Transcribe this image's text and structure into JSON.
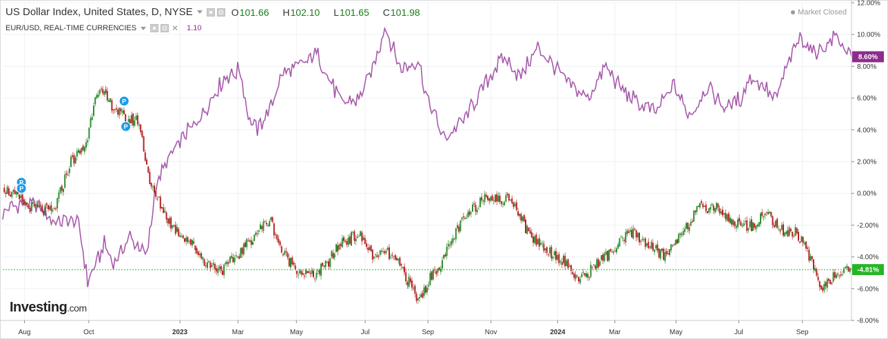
{
  "header": {
    "main_series": "US Dollar Index, United States, D, NYSE",
    "ohlc": {
      "o_label": "O",
      "o": "101.66",
      "h_label": "H",
      "h": "102.10",
      "l_label": "L",
      "l": "101.65",
      "c_label": "C",
      "c": "101.98"
    },
    "compare_series": "EUR/USD, REAL-TIME CURRENCIES",
    "compare_value": "1.10",
    "status": "Market Closed"
  },
  "brand": {
    "name": "Investing",
    "suffix": ".com"
  },
  "colors": {
    "up": "#2e8b2e",
    "down": "#b22222",
    "eurusd": "#a65aaa",
    "current_tag": "#26b526",
    "eur_tag": "#8e2c8e",
    "grid": "#eef0f3"
  },
  "chart_data": {
    "type": "line",
    "title": "US Dollar Index, United States, D, NYSE",
    "xlabel": "",
    "ylabel": "",
    "ylim": [
      -8,
      12
    ],
    "y_ticks": [
      "12.00%",
      "10.00%",
      "8.00%",
      "6.00%",
      "4.00%",
      "2.00%",
      "0.00%",
      "-2.00%",
      "-4.00%",
      "-6.00%",
      "-8.00%"
    ],
    "y_tick_values": [
      12,
      10,
      8,
      6,
      4,
      2,
      0,
      -2,
      -4,
      -6,
      -8
    ],
    "x_ticks": [
      "Aug",
      "Oct",
      "2023",
      "Mar",
      "May",
      "Jul",
      "Sep",
      "Nov",
      "2024",
      "Mar",
      "May",
      "Jul",
      "Sep"
    ],
    "x_tick_values": [
      0.0256,
      0.1014,
      0.2087,
      0.2771,
      0.346,
      0.4271,
      0.501,
      0.5752,
      0.6538,
      0.7212,
      0.7933,
      0.8672,
      0.9421
    ],
    "current_dxy_label": "-4.81%",
    "current_eurusd_label": "8.60%",
    "series": [
      {
        "name": "US Dollar Index",
        "style": "candles",
        "x": [
          0,
          0.03,
          0.06,
          0.08,
          0.095,
          0.1,
          0.11,
          0.13,
          0.145,
          0.16,
          0.175,
          0.2,
          0.22,
          0.24,
          0.26,
          0.28,
          0.3,
          0.315,
          0.33,
          0.35,
          0.365,
          0.38,
          0.4,
          0.42,
          0.44,
          0.45,
          0.47,
          0.49,
          0.505,
          0.52,
          0.535,
          0.55,
          0.57,
          0.585,
          0.6,
          0.62,
          0.64,
          0.66,
          0.68,
          0.7,
          0.72,
          0.74,
          0.76,
          0.78,
          0.8,
          0.82,
          0.84,
          0.86,
          0.88,
          0.9,
          0.92,
          0.935,
          0.95,
          0.965,
          0.98,
          1.0
        ],
        "y": [
          0.4,
          -0.8,
          -1.2,
          2.0,
          2.8,
          3.5,
          6.6,
          5.5,
          4.6,
          4.6,
          0.3,
          -2.1,
          -3.0,
          -4.4,
          -4.8,
          -3.7,
          -2.4,
          -1.6,
          -3.8,
          -4.9,
          -5.2,
          -4.6,
          -3.0,
          -2.6,
          -4.2,
          -3.6,
          -4.7,
          -6.8,
          -5.2,
          -4.1,
          -2.3,
          -1.3,
          0.0,
          -0.5,
          -0.3,
          -2.6,
          -3.5,
          -4.2,
          -5.5,
          -4.4,
          -3.6,
          -2.4,
          -3.2,
          -4.0,
          -2.4,
          -1.0,
          -0.8,
          -1.8,
          -2.1,
          -1.2,
          -2.5,
          -2.4,
          -4.0,
          -5.9,
          -5.2,
          -4.8
        ]
      },
      {
        "name": "EUR/USD",
        "style": "line",
        "x": [
          0,
          0.02,
          0.04,
          0.06,
          0.08,
          0.09,
          0.1,
          0.11,
          0.12,
          0.13,
          0.14,
          0.15,
          0.17,
          0.18,
          0.19,
          0.2,
          0.22,
          0.24,
          0.26,
          0.28,
          0.29,
          0.3,
          0.315,
          0.33,
          0.35,
          0.37,
          0.39,
          0.4,
          0.42,
          0.44,
          0.45,
          0.47,
          0.49,
          0.5,
          0.52,
          0.54,
          0.55,
          0.57,
          0.59,
          0.61,
          0.63,
          0.65,
          0.67,
          0.69,
          0.71,
          0.73,
          0.75,
          0.77,
          0.79,
          0.81,
          0.83,
          0.85,
          0.87,
          0.88,
          0.9,
          0.91,
          0.92,
          0.94,
          0.955,
          0.97,
          0.98,
          1.0
        ],
        "y": [
          -1.2,
          -0.6,
          -0.8,
          -1.8,
          -1.6,
          -2.0,
          -5.6,
          -4.4,
          -3.2,
          -4.4,
          -3.7,
          -2.7,
          -4.0,
          0.4,
          1.6,
          2.6,
          4.0,
          5.4,
          7.2,
          7.8,
          4.6,
          4.0,
          5.4,
          7.6,
          8.0,
          8.8,
          6.6,
          5.6,
          6.0,
          8.4,
          10.5,
          7.8,
          8.4,
          6.0,
          3.4,
          4.4,
          5.2,
          7.0,
          8.6,
          7.3,
          9.2,
          8.0,
          6.8,
          6.0,
          8.0,
          6.5,
          5.6,
          5.1,
          6.8,
          4.9,
          6.8,
          5.4,
          6.0,
          7.4,
          6.6,
          5.8,
          7.4,
          10.0,
          8.8,
          9.2,
          10.0,
          8.6
        ]
      }
    ]
  }
}
